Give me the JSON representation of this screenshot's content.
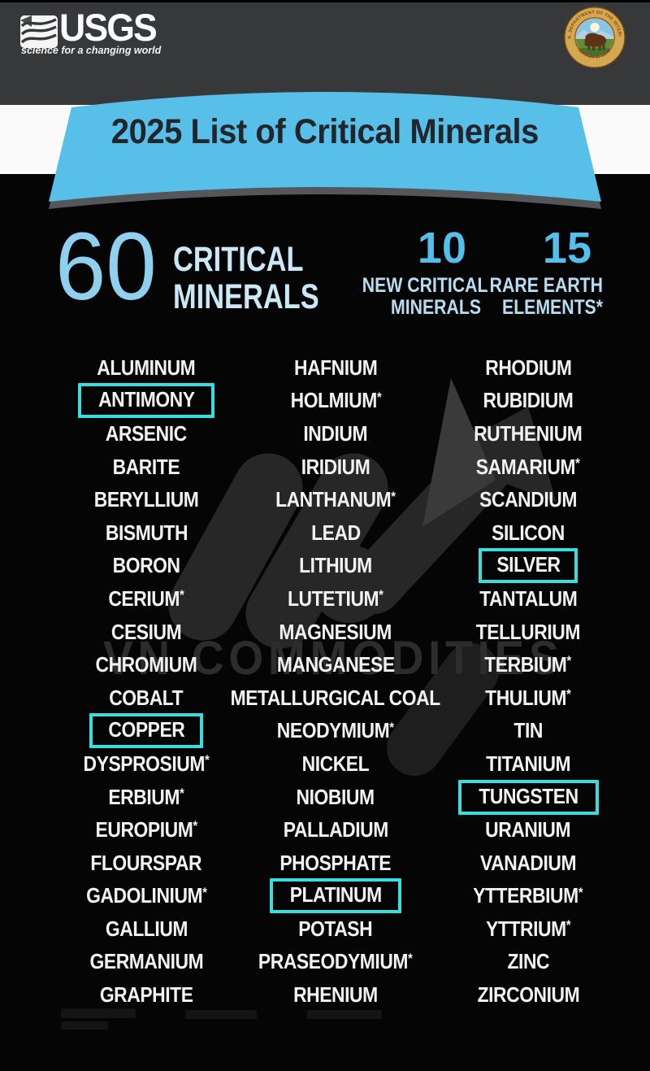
{
  "header": {
    "usgs": {
      "acronym": "USGS",
      "tagline": "science for a changing world"
    },
    "seal": {
      "top_text": "U.S. DEPARTMENT OF THE INTERIOR",
      "bottom_text": "MARCH 3, 1849"
    }
  },
  "banner": {
    "title": "2025 List of Critical Minerals"
  },
  "stats": {
    "total": {
      "value": "60",
      "label_lines": [
        "CRITICAL",
        "MINERALS"
      ]
    },
    "new_critical": {
      "value": "10",
      "label_lines": [
        "NEW CRITICAL",
        "MINERALS"
      ]
    },
    "rare_earth": {
      "value": "15",
      "label_lines": [
        "RARE EARTH",
        "ELEMENTS*"
      ]
    }
  },
  "minerals": {
    "columns": [
      {
        "items": [
          {
            "name": "ALUMINUM"
          },
          {
            "name": "ANTIMONY",
            "boxed": true
          },
          {
            "name": "ARSENIC"
          },
          {
            "name": "BARITE"
          },
          {
            "name": "BERYLLIUM"
          },
          {
            "name": "BISMUTH"
          },
          {
            "name": "BORON"
          },
          {
            "name": "CERIUM",
            "asterisk": true
          },
          {
            "name": "CESIUM"
          },
          {
            "name": "CHROMIUM"
          },
          {
            "name": "COBALT"
          },
          {
            "name": "COPPER",
            "boxed": true
          },
          {
            "name": "DYSPROSIUM",
            "asterisk": true
          },
          {
            "name": "ERBIUM",
            "asterisk": true
          },
          {
            "name": "EUROPIUM",
            "asterisk": true
          },
          {
            "name": "FLOURSPAR"
          },
          {
            "name": "GADOLINIUM",
            "asterisk": true
          },
          {
            "name": "GALLIUM"
          },
          {
            "name": "GERMANIUM"
          },
          {
            "name": "GRAPHITE"
          }
        ]
      },
      {
        "items": [
          {
            "name": "HAFNIUM"
          },
          {
            "name": "HOLMIUM",
            "asterisk": true
          },
          {
            "name": "INDIUM"
          },
          {
            "name": "IRIDIUM"
          },
          {
            "name": "LANTHANUM",
            "asterisk": true
          },
          {
            "name": "LEAD"
          },
          {
            "name": "LITHIUM"
          },
          {
            "name": "LUTETIUM",
            "asterisk": true
          },
          {
            "name": "MAGNESIUM"
          },
          {
            "name": "MANGANESE"
          },
          {
            "name": "METALLURGICAL COAL"
          },
          {
            "name": "NEODYMIUM",
            "asterisk": true
          },
          {
            "name": "NICKEL"
          },
          {
            "name": "NIOBIUM"
          },
          {
            "name": "PALLADIUM"
          },
          {
            "name": "PHOSPHATE"
          },
          {
            "name": "PLATINUM",
            "boxed": true
          },
          {
            "name": "POTASH"
          },
          {
            "name": "PRASEODYMIUM",
            "asterisk": true
          },
          {
            "name": "RHENIUM"
          }
        ]
      },
      {
        "items": [
          {
            "name": "RHODIUM"
          },
          {
            "name": "RUBIDIUM"
          },
          {
            "name": "RUTHENIUM"
          },
          {
            "name": "SAMARIUM",
            "asterisk": true
          },
          {
            "name": "SCANDIUM"
          },
          {
            "name": "SILICON"
          },
          {
            "name": "SILVER",
            "boxed": true
          },
          {
            "name": "TANTALUM"
          },
          {
            "name": "TELLURIUM"
          },
          {
            "name": "TERBIUM",
            "asterisk": true
          },
          {
            "name": "THULIUM",
            "asterisk": true
          },
          {
            "name": "TIN"
          },
          {
            "name": "TITANIUM"
          },
          {
            "name": "TUNGSTEN",
            "boxed": true
          },
          {
            "name": "URANIUM"
          },
          {
            "name": "VANADIUM"
          },
          {
            "name": "YTTERBIUM",
            "asterisk": true
          },
          {
            "name": "YTTRIUM",
            "asterisk": true
          },
          {
            "name": "ZINC"
          },
          {
            "name": "ZIRCONIUM"
          }
        ]
      }
    ]
  },
  "watermark": {
    "text": "VN COMMODITIES"
  },
  "colors": {
    "header_gray": "#36383a",
    "banner_blue": "#58bfe9",
    "banner_title": "#22262a",
    "big_number_blue": "#8ed0ed",
    "stat_number_blue": "#55bfec",
    "stat_label_blue": "#b7ddf2",
    "total_label_blue": "#cbe8f7",
    "mineral_text": "#f2f2f2",
    "highlight_cyan": "#38dedf",
    "watermark_gray": "#2c2c2c",
    "background_black": "#050505",
    "white_band": "#fafafa"
  }
}
